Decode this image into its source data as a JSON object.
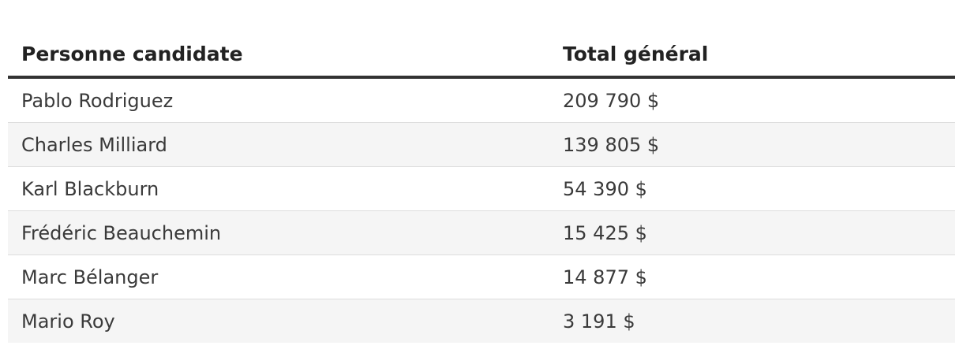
{
  "chart_data": {
    "type": "table",
    "columns": [
      "Personne candidate",
      "Total général"
    ],
    "rows": [
      {
        "candidate": "Pablo Rodriguez",
        "total": "209 790 $",
        "value": 209790
      },
      {
        "candidate": "Charles Milliard",
        "total": "139 805 $",
        "value": 139805
      },
      {
        "candidate": "Karl Blackburn",
        "total": "54 390 $",
        "value": 54390
      },
      {
        "candidate": "Frédéric Beauchemin",
        "total": "15 425 $",
        "value": 15425
      },
      {
        "candidate": "Marc Bélanger",
        "total": "14 877 $",
        "value": 14877
      },
      {
        "candidate": "Mario Roy",
        "total": "3 191 $",
        "value": 3191
      }
    ]
  },
  "colors": {
    "header_rule": "#333333",
    "stripe": "#f5f5f5",
    "row_divider": "#dddddd"
  }
}
